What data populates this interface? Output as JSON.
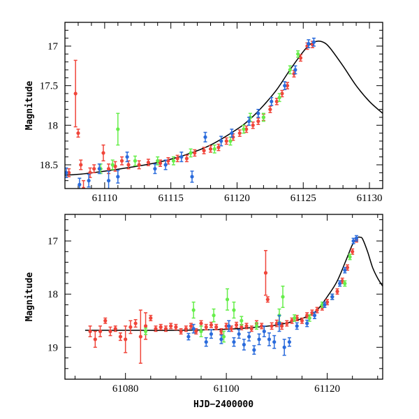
{
  "figure": {
    "xlabel": "HJD−2400000",
    "colors": {
      "red": "#f0453a",
      "green": "#66ee4a",
      "blue": "#2a6bdc",
      "model": "#000000"
    }
  },
  "chart_data": [
    {
      "type": "scatter",
      "title": "",
      "xlabel": "",
      "ylabel": "Magnitude",
      "xlim": [
        61107,
        61131
      ],
      "ylim": [
        18.8,
        16.7
      ],
      "y_inverted": true,
      "xticks": [
        61110,
        61115,
        61120,
        61125,
        61130
      ],
      "yticks": [
        17,
        17.5,
        18,
        18.5
      ],
      "model": {
        "x": [
          61105,
          61108,
          61110,
          61112,
          61114,
          61116,
          61118,
          61120,
          61121,
          61122,
          61123,
          61124,
          61125,
          61125.5,
          61126,
          61126.5,
          61127,
          61128,
          61129,
          61130,
          61131
        ],
        "y": [
          18.65,
          18.62,
          18.58,
          18.53,
          18.47,
          18.38,
          18.25,
          18.05,
          17.92,
          17.75,
          17.55,
          17.3,
          17.07,
          16.98,
          16.94,
          16.95,
          17.02,
          17.25,
          17.5,
          17.7,
          17.85
        ]
      },
      "series": [
        {
          "name": "red",
          "x": [
            61107.3,
            61107.8,
            61108.0,
            61108.2,
            61108.4,
            61108.9,
            61109.2,
            61109.9,
            61110.3,
            61110.8,
            61111.3,
            61111.8,
            61112.6,
            61113.3,
            61114.2,
            61114.8,
            61115.5,
            61116.2,
            61116.8,
            61117.5,
            61118.0,
            61118.6,
            61119.2,
            61119.7,
            61120.2,
            61120.7,
            61121.2,
            61121.6,
            61122.0,
            61122.5,
            61123.0,
            61123.4,
            61123.8,
            61124.3,
            61124.8,
            61125.3,
            61125.7
          ],
          "y": [
            18.6,
            17.6,
            18.1,
            18.5,
            18.8,
            18.6,
            18.55,
            18.35,
            18.55,
            18.52,
            18.45,
            18.5,
            18.5,
            18.47,
            18.48,
            18.45,
            18.42,
            18.42,
            18.35,
            18.32,
            18.3,
            18.28,
            18.2,
            18.15,
            18.1,
            18.05,
            18.0,
            17.95,
            17.9,
            17.8,
            17.7,
            17.6,
            17.5,
            17.35,
            17.15,
            17.0,
            16.98
          ],
          "err": [
            0.05,
            0.42,
            0.05,
            0.06,
            0.1,
            0.06,
            0.05,
            0.1,
            0.06,
            0.06,
            0.05,
            0.05,
            0.05,
            0.04,
            0.04,
            0.04,
            0.04,
            0.04,
            0.04,
            0.04,
            0.04,
            0.04,
            0.04,
            0.04,
            0.04,
            0.04,
            0.04,
            0.04,
            0.04,
            0.04,
            0.04,
            0.04,
            0.04,
            0.04,
            0.04,
            0.04,
            0.04
          ]
        },
        {
          "name": "green",
          "x": [
            61109.7,
            61110.6,
            61111.0,
            61112.3,
            61114.0,
            61115.2,
            61116.5,
            61118.3,
            61119.5,
            61120.5,
            61121.0,
            61122.0,
            61123.2,
            61124.0,
            61124.6
          ],
          "y": [
            18.55,
            18.5,
            18.05,
            18.45,
            18.45,
            18.45,
            18.35,
            18.3,
            18.2,
            18.05,
            17.9,
            17.9,
            17.65,
            17.3,
            17.1
          ],
          "err": [
            0.06,
            0.06,
            0.2,
            0.06,
            0.05,
            0.05,
            0.05,
            0.05,
            0.05,
            0.05,
            0.05,
            0.05,
            0.05,
            0.05,
            0.04
          ]
        },
        {
          "name": "blue",
          "x": [
            61107.1,
            61108.1,
            61108.8,
            61109.6,
            61110.3,
            61111.0,
            61111.7,
            61113.8,
            61114.6,
            61115.8,
            61116.6,
            61117.6,
            61118.8,
            61119.6,
            61120.9,
            61121.6,
            61122.6,
            61123.6,
            61124.4,
            61125.4,
            61125.8
          ],
          "y": [
            18.6,
            18.75,
            18.7,
            18.55,
            18.7,
            18.65,
            18.4,
            18.55,
            18.5,
            18.4,
            18.65,
            18.15,
            18.2,
            18.1,
            17.95,
            17.85,
            17.7,
            17.5,
            17.3,
            16.97,
            16.95
          ],
          "err": [
            0.06,
            0.08,
            0.08,
            0.06,
            0.12,
            0.08,
            0.06,
            0.06,
            0.06,
            0.06,
            0.07,
            0.06,
            0.06,
            0.05,
            0.05,
            0.05,
            0.05,
            0.05,
            0.05,
            0.05,
            0.05
          ]
        }
      ]
    },
    {
      "type": "scatter",
      "title": "",
      "xlabel": "HJD−2400000",
      "ylabel": "Magnitude",
      "xlim": [
        61068,
        61131
      ],
      "ylim": [
        19.6,
        16.5
      ],
      "y_inverted": true,
      "xticks": [
        61080,
        61100,
        61120
      ],
      "yticks": [
        17,
        18,
        19
      ],
      "model": {
        "x": [
          61072,
          61080,
          61090,
          61100,
          61105,
          61110,
          61113,
          61116,
          61118,
          61120,
          61122,
          61124,
          61125,
          61126,
          61126.5,
          61127,
          61128,
          61129,
          61130,
          61131
        ],
        "y": [
          18.68,
          18.68,
          18.68,
          18.66,
          18.63,
          18.58,
          18.52,
          18.42,
          18.3,
          18.05,
          17.75,
          17.3,
          17.07,
          16.94,
          16.93,
          16.96,
          17.2,
          17.5,
          17.7,
          17.85
        ]
      },
      "series": [
        {
          "name": "red",
          "x": [
            61073,
            61074,
            61075,
            61076,
            61077,
            61078,
            61079,
            61080,
            61081,
            61082,
            61083,
            61084,
            61085,
            61086,
            61087,
            61088,
            61089,
            61090,
            61091,
            61092,
            61093,
            61094,
            61095,
            61096,
            61097,
            61098,
            61099,
            61100,
            61101,
            61102,
            61103,
            61104,
            61105,
            61106,
            61107,
            61107.8,
            61108.2,
            61109,
            61110,
            61111,
            61112,
            61113,
            61114,
            61115,
            61116,
            61117,
            61118,
            61119,
            61120,
            61121,
            61122,
            61123,
            61124,
            61125,
            61125.8
          ],
          "y": [
            18.7,
            18.85,
            18.7,
            18.5,
            18.7,
            18.65,
            18.8,
            18.85,
            18.62,
            18.55,
            18.8,
            18.6,
            18.45,
            18.65,
            18.62,
            18.65,
            18.6,
            18.62,
            18.7,
            18.65,
            18.6,
            18.7,
            18.55,
            18.62,
            18.58,
            18.62,
            18.7,
            18.6,
            18.65,
            18.58,
            18.62,
            18.6,
            18.65,
            18.55,
            18.6,
            17.6,
            18.1,
            18.6,
            18.55,
            18.6,
            18.55,
            18.5,
            18.45,
            18.5,
            18.4,
            18.35,
            18.3,
            18.25,
            18.15,
            18.05,
            17.95,
            17.75,
            17.5,
            17.2,
            16.98
          ],
          "err": [
            0.1,
            0.15,
            0.1,
            0.05,
            0.08,
            0.05,
            0.07,
            0.25,
            0.12,
            0.07,
            0.5,
            0.25,
            0.05,
            0.05,
            0.05,
            0.05,
            0.05,
            0.05,
            0.05,
            0.05,
            0.05,
            0.05,
            0.05,
            0.05,
            0.05,
            0.05,
            0.05,
            0.05,
            0.05,
            0.05,
            0.05,
            0.05,
            0.05,
            0.05,
            0.05,
            0.42,
            0.05,
            0.06,
            0.06,
            0.06,
            0.05,
            0.05,
            0.05,
            0.05,
            0.05,
            0.05,
            0.05,
            0.05,
            0.05,
            0.05,
            0.05,
            0.05,
            0.05,
            0.05,
            0.04
          ]
        },
        {
          "name": "green",
          "x": [
            61084,
            61093.5,
            61095,
            61097.5,
            61099.5,
            61100.2,
            61101.5,
            61103,
            61106,
            61110.5,
            61111.2,
            61113.5,
            61116.5,
            61119,
            61121,
            61123.5,
            61124.5
          ],
          "y": [
            18.7,
            18.3,
            18.7,
            18.4,
            18.8,
            18.1,
            18.3,
            18.5,
            18.6,
            18.4,
            18.05,
            18.45,
            18.45,
            18.2,
            18.05,
            17.8,
            17.3
          ],
          "err": [
            0.06,
            0.15,
            0.1,
            0.12,
            0.1,
            0.2,
            0.15,
            0.08,
            0.06,
            0.12,
            0.2,
            0.06,
            0.06,
            0.05,
            0.05,
            0.05,
            0.05
          ]
        },
        {
          "name": "blue",
          "x": [
            61092.5,
            61093.5,
            61096,
            61097,
            61099,
            61100.5,
            61101.5,
            61102.5,
            61103.5,
            61104.5,
            61105.5,
            61106.5,
            61107.5,
            61108.5,
            61109.5,
            61110.5,
            61111.5,
            61112.5,
            61114,
            61116,
            61117.5,
            61119.5,
            61121,
            61122.5,
            61123.5,
            61125.2,
            61125.8
          ],
          "y": [
            18.8,
            18.65,
            18.9,
            18.75,
            18.85,
            18.6,
            18.9,
            18.75,
            18.95,
            18.8,
            19.05,
            18.85,
            18.7,
            18.85,
            18.9,
            18.55,
            19.0,
            18.9,
            18.6,
            18.55,
            18.4,
            18.2,
            18.05,
            17.8,
            17.55,
            17.0,
            16.95
          ],
          "err": [
            0.06,
            0.08,
            0.08,
            0.08,
            0.08,
            0.1,
            0.08,
            0.08,
            0.1,
            0.08,
            0.08,
            0.1,
            0.1,
            0.12,
            0.12,
            0.15,
            0.15,
            0.08,
            0.06,
            0.06,
            0.06,
            0.05,
            0.05,
            0.05,
            0.05,
            0.05,
            0.05
          ]
        }
      ]
    }
  ]
}
